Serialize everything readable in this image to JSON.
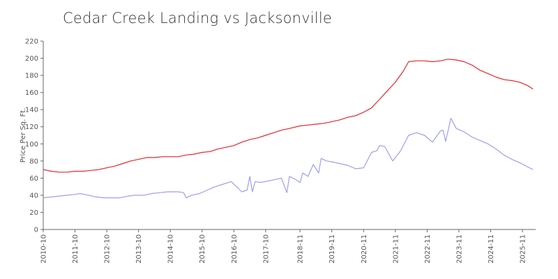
{
  "chart_data": {
    "type": "line",
    "title": "Cedar Creek Landing vs Jacksonville",
    "ylabel": "Price Per Sq. Ft.",
    "xlabel": "",
    "ylim": [
      0,
      220
    ],
    "yticks": [
      0,
      20,
      40,
      60,
      80,
      100,
      120,
      140,
      160,
      180,
      200,
      220
    ],
    "xlim": [
      "2010-10",
      "2026-04"
    ],
    "xticks": [
      "2010-10",
      "2011-10",
      "2012-10",
      "2013-10",
      "2014-10",
      "2015-10",
      "2016-10",
      "2017-10",
      "2018-11",
      "2019-11",
      "2020-11",
      "2021-11",
      "2022-11",
      "2023-11",
      "2024-11",
      "2025-11"
    ],
    "grid": false,
    "legend": "none",
    "series": [
      {
        "color": "#e8262b",
        "points": [
          [
            "2010-10",
            70
          ],
          [
            "2011-01",
            68
          ],
          [
            "2011-04",
            67
          ],
          [
            "2011-07",
            67
          ],
          [
            "2011-10",
            68
          ],
          [
            "2012-01",
            68
          ],
          [
            "2012-04",
            69
          ],
          [
            "2012-07",
            70
          ],
          [
            "2012-10",
            72
          ],
          [
            "2013-01",
            74
          ],
          [
            "2013-04",
            77
          ],
          [
            "2013-07",
            80
          ],
          [
            "2013-10",
            82
          ],
          [
            "2014-01",
            84
          ],
          [
            "2014-04",
            84
          ],
          [
            "2014-07",
            85
          ],
          [
            "2014-10",
            85
          ],
          [
            "2015-01",
            85
          ],
          [
            "2015-04",
            87
          ],
          [
            "2015-07",
            88
          ],
          [
            "2015-10",
            90
          ],
          [
            "2016-01",
            91
          ],
          [
            "2016-04",
            94
          ],
          [
            "2016-07",
            96
          ],
          [
            "2016-10",
            98
          ],
          [
            "2017-01",
            102
          ],
          [
            "2017-04",
            105
          ],
          [
            "2017-07",
            107
          ],
          [
            "2017-10",
            110
          ],
          [
            "2018-01",
            113
          ],
          [
            "2018-04",
            116
          ],
          [
            "2018-07",
            118
          ],
          [
            "2018-11",
            121
          ],
          [
            "2019-02",
            122
          ],
          [
            "2019-05",
            123
          ],
          [
            "2019-08",
            124
          ],
          [
            "2019-11",
            126
          ],
          [
            "2020-02",
            128
          ],
          [
            "2020-05",
            131
          ],
          [
            "2020-08",
            133
          ],
          [
            "2020-11",
            137
          ],
          [
            "2021-02",
            142
          ],
          [
            "2021-05",
            152
          ],
          [
            "2021-08",
            162
          ],
          [
            "2021-11",
            172
          ],
          [
            "2022-02",
            185
          ],
          [
            "2022-04",
            196
          ],
          [
            "2022-07",
            197
          ],
          [
            "2022-10",
            197
          ],
          [
            "2023-01",
            196
          ],
          [
            "2023-04",
            197
          ],
          [
            "2023-07",
            199
          ],
          [
            "2023-10",
            198
          ],
          [
            "2024-01",
            196
          ],
          [
            "2024-04",
            192
          ],
          [
            "2024-07",
            186
          ],
          [
            "2024-10",
            182
          ],
          [
            "2025-01",
            178
          ],
          [
            "2025-04",
            175
          ],
          [
            "2025-07",
            174
          ],
          [
            "2025-10",
            172
          ],
          [
            "2026-01",
            168
          ],
          [
            "2026-03",
            164
          ]
        ]
      },
      {
        "color": "#9d9df5",
        "points": [
          [
            "2010-10",
            37
          ],
          [
            "2011-01",
            38
          ],
          [
            "2011-04",
            39
          ],
          [
            "2011-07",
            40
          ],
          [
            "2011-10",
            41
          ],
          [
            "2011-12",
            42
          ],
          [
            "2012-03",
            40
          ],
          [
            "2012-06",
            38
          ],
          [
            "2012-09",
            37
          ],
          [
            "2012-12",
            37
          ],
          [
            "2013-03",
            37
          ],
          [
            "2013-06",
            39
          ],
          [
            "2013-09",
            40
          ],
          [
            "2013-12",
            40
          ],
          [
            "2014-03",
            42
          ],
          [
            "2014-06",
            43
          ],
          [
            "2014-09",
            44
          ],
          [
            "2015-01",
            44
          ],
          [
            "2015-03",
            43
          ],
          [
            "2015-04",
            37
          ],
          [
            "2015-06",
            40
          ],
          [
            "2015-09",
            42
          ],
          [
            "2015-12",
            46
          ],
          [
            "2016-03",
            50
          ],
          [
            "2016-06",
            53
          ],
          [
            "2016-09",
            56
          ],
          [
            "2016-11",
            50
          ],
          [
            "2017-01",
            44
          ],
          [
            "2017-03",
            46
          ],
          [
            "2017-04",
            62
          ],
          [
            "2017-05",
            44
          ],
          [
            "2017-06",
            56
          ],
          [
            "2017-08",
            55
          ],
          [
            "2017-10",
            56
          ],
          [
            "2018-01",
            58
          ],
          [
            "2018-04",
            60
          ],
          [
            "2018-06",
            43
          ],
          [
            "2018-07",
            62
          ],
          [
            "2018-09",
            59
          ],
          [
            "2018-11",
            55
          ],
          [
            "2018-12",
            66
          ],
          [
            "2019-02",
            62
          ],
          [
            "2019-04",
            76
          ],
          [
            "2019-06",
            66
          ],
          [
            "2019-07",
            83
          ],
          [
            "2019-09",
            80
          ],
          [
            "2019-11",
            79
          ],
          [
            "2020-02",
            77
          ],
          [
            "2020-05",
            75
          ],
          [
            "2020-08",
            71
          ],
          [
            "2020-11",
            72
          ],
          [
            "2021-02",
            90
          ],
          [
            "2021-04",
            92
          ],
          [
            "2021-05",
            98
          ],
          [
            "2021-07",
            97
          ],
          [
            "2021-10",
            80
          ],
          [
            "2022-01",
            92
          ],
          [
            "2022-04",
            110
          ],
          [
            "2022-07",
            113
          ],
          [
            "2022-10",
            110
          ],
          [
            "2023-01",
            102
          ],
          [
            "2023-04",
            115
          ],
          [
            "2023-05",
            116
          ],
          [
            "2023-06",
            103
          ],
          [
            "2023-08",
            130
          ],
          [
            "2023-10",
            118
          ],
          [
            "2024-01",
            114
          ],
          [
            "2024-04",
            108
          ],
          [
            "2024-07",
            104
          ],
          [
            "2024-10",
            100
          ],
          [
            "2025-01",
            94
          ],
          [
            "2025-04",
            87
          ],
          [
            "2025-07",
            82
          ],
          [
            "2025-10",
            78
          ],
          [
            "2026-01",
            73
          ],
          [
            "2026-03",
            70
          ]
        ]
      }
    ]
  }
}
